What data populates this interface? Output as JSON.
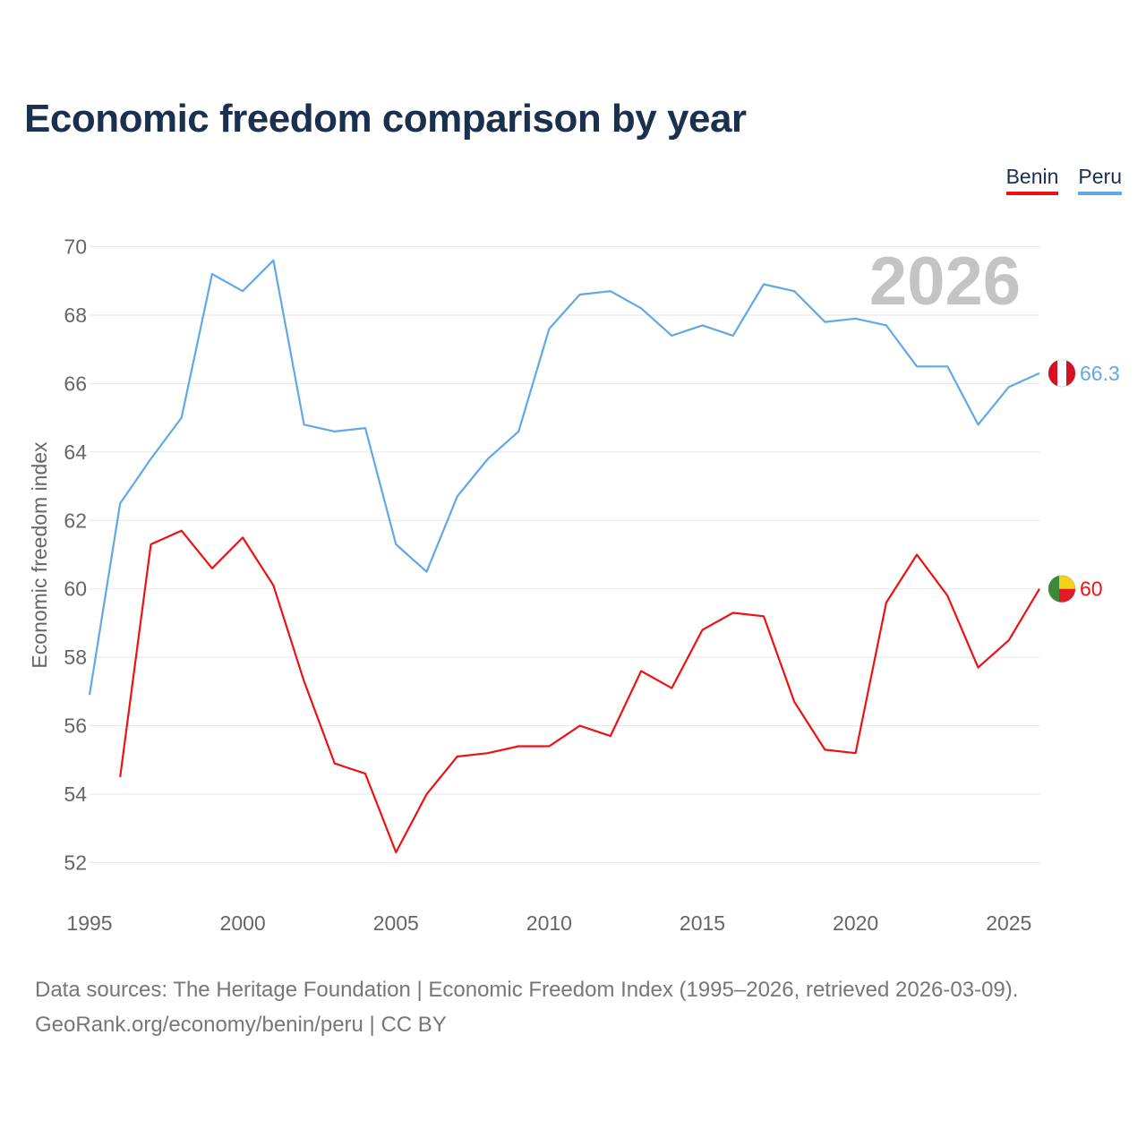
{
  "title": "Economic freedom comparison by year",
  "legend": [
    {
      "name": "Benin",
      "color": "#ee1111"
    },
    {
      "name": "Peru",
      "color": "#60a8e8"
    }
  ],
  "year_watermark": "2026",
  "footer": {
    "sources": "Data sources: The Heritage Foundation | Economic Freedom Index (1995–2026, retrieved 2026-03-09).",
    "credit": "GeoRank.org/economy/benin/peru | CC BY"
  },
  "chart_data": {
    "type": "line",
    "title": "Economic freedom comparison by year",
    "xlabel": "",
    "ylabel": "Economic freedom index",
    "xlim": [
      1995,
      2026
    ],
    "ylim": [
      51,
      71
    ],
    "x_ticks": [
      1995,
      2000,
      2005,
      2010,
      2015,
      2020,
      2025
    ],
    "x_tick_labels": [
      "1995",
      "2000",
      "2005",
      "2010",
      "2015",
      "2020",
      "2025"
    ],
    "y_ticks": [
      52,
      54,
      56,
      58,
      60,
      62,
      64,
      66,
      68,
      70
    ],
    "y_tick_labels": [
      "52",
      "54",
      "56",
      "58",
      "60",
      "62",
      "64",
      "66",
      "68",
      "70"
    ],
    "grid": true,
    "legend_position": "top-right",
    "series": [
      {
        "name": "Benin",
        "color": "#ee1111",
        "end_label": "60",
        "x": [
          1996,
          1997,
          1998,
          1999,
          2000,
          2001,
          2002,
          2003,
          2004,
          2005,
          2006,
          2007,
          2008,
          2009,
          2010,
          2011,
          2012,
          2013,
          2014,
          2015,
          2016,
          2017,
          2018,
          2019,
          2020,
          2021,
          2022,
          2023,
          2024,
          2025,
          2026
        ],
        "values": [
          54.5,
          61.3,
          61.7,
          60.6,
          61.5,
          60.1,
          57.3,
          54.9,
          54.6,
          52.3,
          54.0,
          55.1,
          55.2,
          55.4,
          55.4,
          56.0,
          55.7,
          57.6,
          57.1,
          58.8,
          59.3,
          59.2,
          56.7,
          55.3,
          55.2,
          59.6,
          61.0,
          59.8,
          57.7,
          58.5,
          60.0
        ]
      },
      {
        "name": "Peru",
        "color": "#60a8e8",
        "end_label": "66.3",
        "x": [
          1995,
          1996,
          1997,
          1998,
          1999,
          2000,
          2001,
          2002,
          2003,
          2004,
          2005,
          2006,
          2007,
          2008,
          2009,
          2010,
          2011,
          2012,
          2013,
          2014,
          2015,
          2016,
          2017,
          2018,
          2019,
          2020,
          2021,
          2022,
          2023,
          2024,
          2025,
          2026
        ],
        "values": [
          56.9,
          62.5,
          63.8,
          65.0,
          69.2,
          68.7,
          69.6,
          64.8,
          64.6,
          64.7,
          61.3,
          60.5,
          62.7,
          63.8,
          64.6,
          67.6,
          68.6,
          68.7,
          68.2,
          67.4,
          67.7,
          67.4,
          68.9,
          68.7,
          67.8,
          67.9,
          67.7,
          66.5,
          66.5,
          64.8,
          65.9,
          66.3
        ]
      }
    ]
  }
}
